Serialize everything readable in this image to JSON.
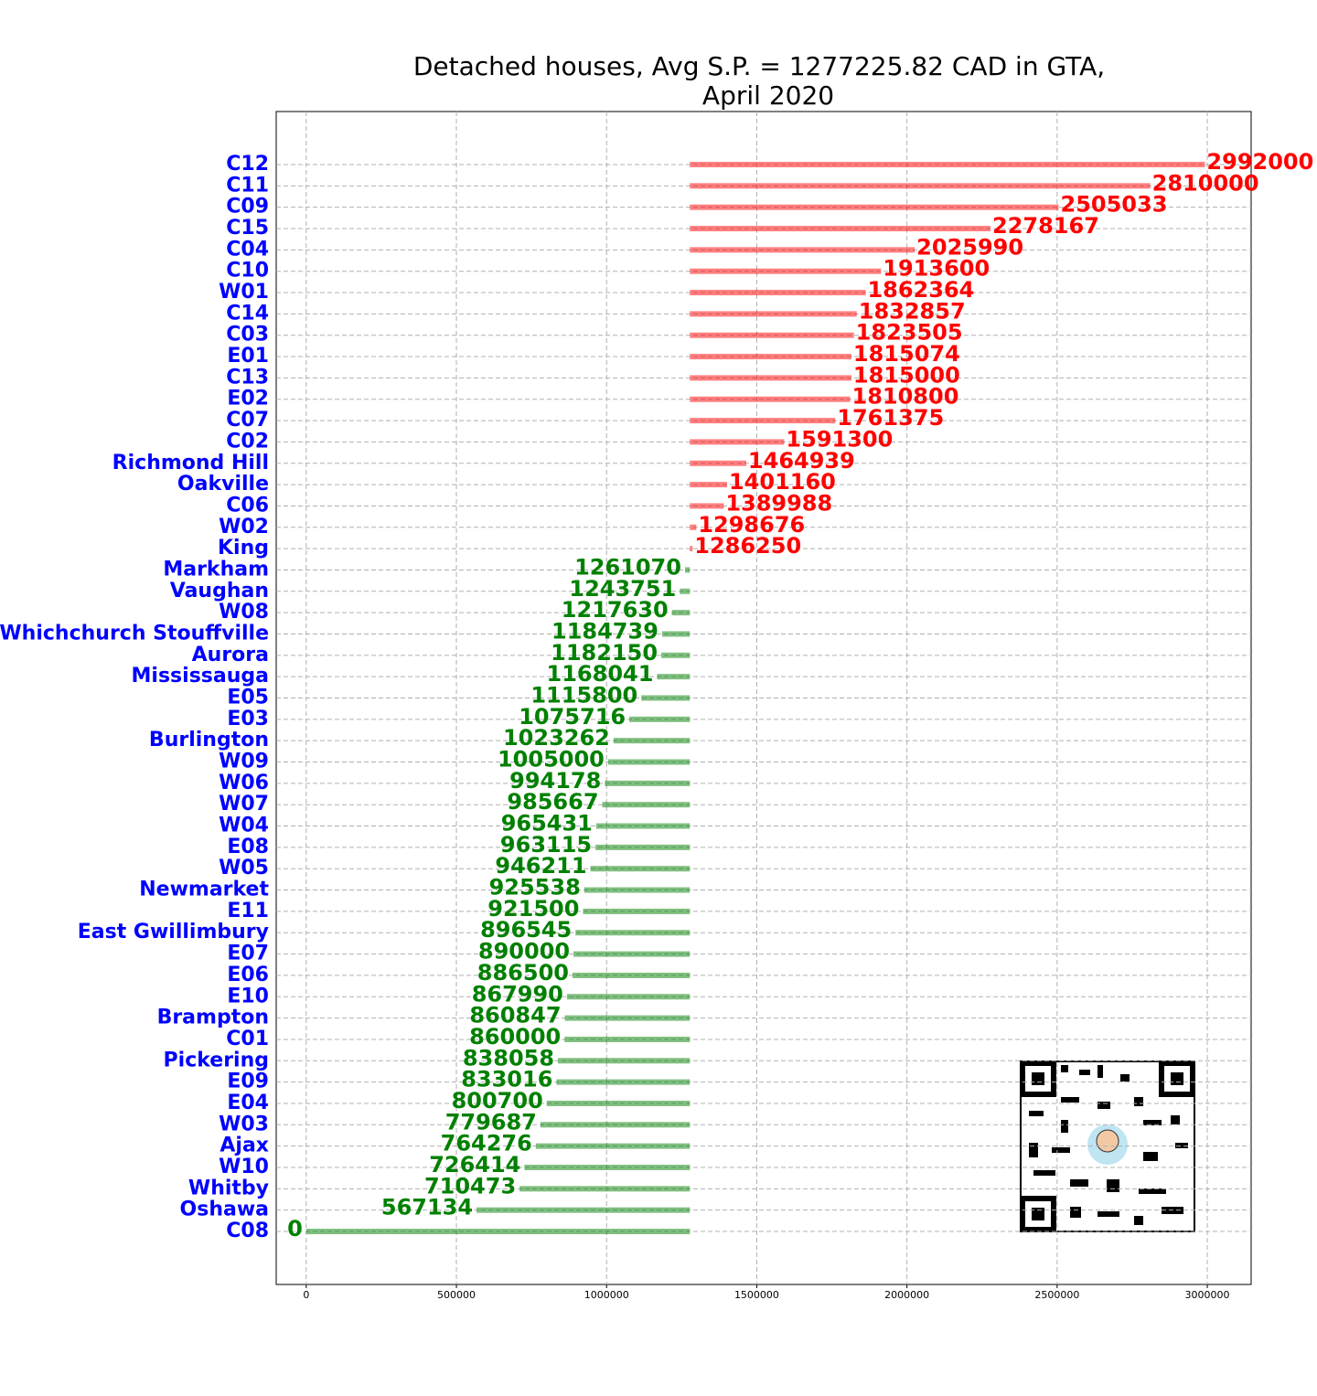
{
  "chart_data": {
    "type": "diverging-bar",
    "title": [
      "Detached houses, Avg S.P. = 1277225.82 CAD in GTA,",
      "April 2020"
    ],
    "baseline": 1277225.82,
    "above_color": "#ff0000",
    "below_color": "#008000",
    "label_color": "#0000ff",
    "categories": [
      "C12",
      "C11",
      "C09",
      "C15",
      "C04",
      "C10",
      "W01",
      "C14",
      "C03",
      "E01",
      "C13",
      "E02",
      "C07",
      "C02",
      "Richmond Hill",
      "Oakville",
      "C06",
      "W02",
      "King",
      "Markham",
      "Vaughan",
      "W08",
      "Whichchurch Stouffville",
      "Aurora",
      "Mississauga",
      "E05",
      "E03",
      "Burlington",
      "W09",
      "W06",
      "W07",
      "W04",
      "E08",
      "W05",
      "Newmarket",
      "E11",
      "East Gwillimbury",
      "E07",
      "E06",
      "E10",
      "Brampton",
      "C01",
      "Pickering",
      "E09",
      "E04",
      "W03",
      "Ajax",
      "W10",
      "Whitby",
      "Oshawa",
      "C08"
    ],
    "values": [
      2992000,
      2810000,
      2505033,
      2278167,
      2025990,
      1913600,
      1862364,
      1832857,
      1823505,
      1815074,
      1815000,
      1810800,
      1761375,
      1591300,
      1464939,
      1401160,
      1389988,
      1298676,
      1286250,
      1261070,
      1243751,
      1217630,
      1184739,
      1182150,
      1168041,
      1115800,
      1075716,
      1023262,
      1005000,
      994178,
      985667,
      965431,
      963115,
      946211,
      925538,
      921500,
      896545,
      890000,
      886500,
      867990,
      860847,
      860000,
      838058,
      833016,
      800700,
      779687,
      764276,
      726414,
      710473,
      567134,
      0
    ],
    "xlim": [
      -100000,
      3146000
    ],
    "xticks": [
      0,
      500000,
      1000000,
      1500000,
      2000000,
      2500000,
      3000000
    ],
    "grid": true
  }
}
